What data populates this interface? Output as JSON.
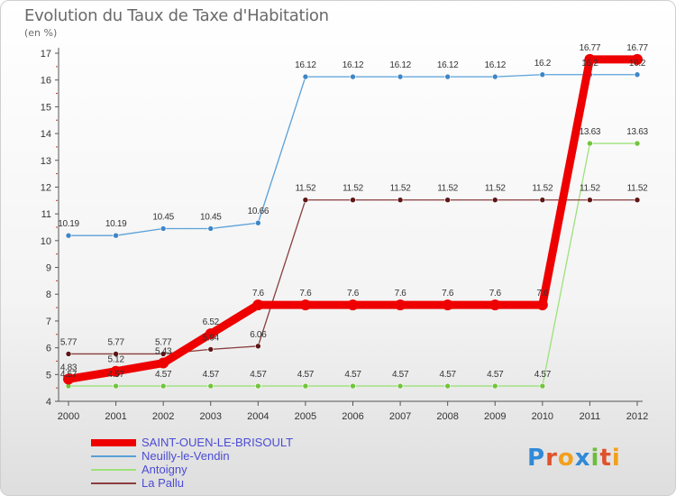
{
  "header": {
    "title": "Evolution du Taux de Taxe d'Habitation",
    "subtitle": "(en %)"
  },
  "logo": {
    "letters": [
      "P",
      "r",
      "o",
      "x",
      "i",
      "t",
      "i"
    ],
    "colors": [
      "#2f8ad8",
      "#e0522a",
      "#f2a01c",
      "#2f8ad8",
      "#6cbd3a",
      "#e0522a",
      "#f2a01c"
    ]
  },
  "chart_data": {
    "type": "line",
    "title": "Evolution du Taux de Taxe d'Habitation",
    "ylabel": "(en %)",
    "xlabel": "",
    "categories": [
      "2000",
      "2001",
      "2002",
      "2003",
      "2004",
      "2005",
      "2006",
      "2007",
      "2008",
      "2009",
      "2010",
      "2011",
      "2012"
    ],
    "ylim": [
      4,
      17
    ],
    "yticks": [
      4,
      5,
      6,
      7,
      8,
      9,
      10,
      11,
      12,
      13,
      14,
      15,
      16,
      17
    ],
    "legend_position": "bottom-left",
    "series": [
      {
        "name": "Neuilly-le-Vendin",
        "color": "#5aa0d8",
        "marker": "#3f86c6",
        "values": [
          10.19,
          10.19,
          10.45,
          10.45,
          10.66,
          16.12,
          16.12,
          16.12,
          16.12,
          16.12,
          16.2,
          16.2,
          16.2
        ],
        "labels": [
          "10.19",
          "10.19",
          "10.45",
          "10.45",
          "10.66",
          "16.12",
          "16.12",
          "16.12",
          "16.12",
          "16.12",
          "16.2",
          "16.2",
          "16.2"
        ]
      },
      {
        "name": "Antoigny",
        "color": "#9ce27a",
        "marker": "#72c43c",
        "values": [
          4.57,
          4.57,
          4.57,
          4.57,
          4.57,
          4.57,
          4.57,
          4.57,
          4.57,
          4.57,
          4.57,
          13.63,
          13.63
        ],
        "labels": [
          "4.57",
          "4.57",
          "4.57",
          "4.57",
          "4.57",
          "4.57",
          "4.57",
          "4.57",
          "4.57",
          "4.57",
          "4.57",
          "13.63",
          "13.63"
        ]
      },
      {
        "name": "La Pallu",
        "color": "#8a3d3d",
        "marker": "#5e1515",
        "values": [
          5.77,
          5.77,
          5.77,
          5.94,
          6.06,
          11.52,
          11.52,
          11.52,
          11.52,
          11.52,
          11.52,
          11.52,
          11.52
        ],
        "labels": [
          "5.77",
          "5.77",
          "5.77",
          "5.94",
          "6.06",
          "11.52",
          "11.52",
          "11.52",
          "11.52",
          "11.52",
          "11.52",
          "11.52",
          "11.52"
        ]
      },
      {
        "name": "SAINT-OUEN-LE-BRISOULT",
        "color": "#ee0000",
        "marker": "#ee0000",
        "values": [
          4.83,
          5.12,
          5.43,
          6.52,
          7.6,
          7.6,
          7.6,
          7.6,
          7.6,
          7.6,
          7.6,
          16.77,
          16.77
        ],
        "labels": [
          "4.83",
          "5.12",
          "5.43",
          "6.52",
          "7.6",
          "7.6",
          "7.6",
          "7.6",
          "7.6",
          "7.6",
          "7.6",
          "16.77",
          "16.77"
        ]
      }
    ],
    "legend": [
      {
        "name": "SAINT-OUEN-LE-BRISOULT",
        "color": "#ee0000"
      },
      {
        "name": "Neuilly-le-Vendin",
        "color": "#5aa0d8"
      },
      {
        "name": "Antoigny",
        "color": "#9ce27a"
      },
      {
        "name": "La Pallu",
        "color": "#8a3d3d"
      }
    ]
  }
}
